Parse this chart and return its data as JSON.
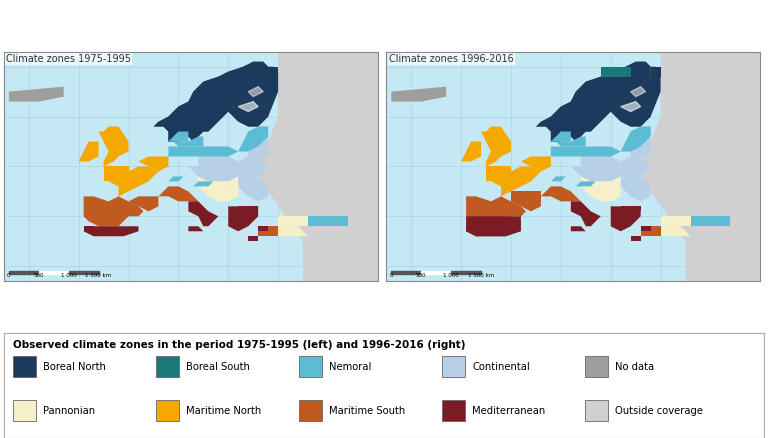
{
  "title_left": "Climate zones 1975-1995",
  "title_right": "Climate zones 1996-2016",
  "legend_title": "Observed climate zones in the period 1975-1995 (left) and 1996-2016 (right)",
  "legend_items_row1": [
    {
      "label": "Boreal North",
      "color": "#1b3a5c"
    },
    {
      "label": "Boreal South",
      "color": "#1a7878"
    },
    {
      "label": "Nemoral",
      "color": "#5bbcd4"
    },
    {
      "label": "Continental",
      "color": "#b8cfe8"
    },
    {
      "label": "No data",
      "color": "#9e9e9e"
    }
  ],
  "legend_items_row2": [
    {
      "label": "Pannonian",
      "color": "#f5f0c8"
    },
    {
      "label": "Maritime North",
      "color": "#f5a800"
    },
    {
      "label": "Maritime South",
      "color": "#c05a20"
    },
    {
      "label": "Mediterranean",
      "color": "#7b1c24"
    },
    {
      "label": "Outside coverage",
      "color": "#d0d0d0"
    }
  ],
  "map_ocean": "#c5e8f5",
  "map_outside": "#c8c8c8",
  "graticule_color": "#a0d0e8",
  "border_color": "#888888",
  "country_border": "#888888",
  "fig_bg": "#ffffff",
  "panel_border": "#aaaaaa",
  "scalebar_dark": "#555555",
  "scalebar_light": "#ffffff",
  "title_bg": "#ffffff"
}
